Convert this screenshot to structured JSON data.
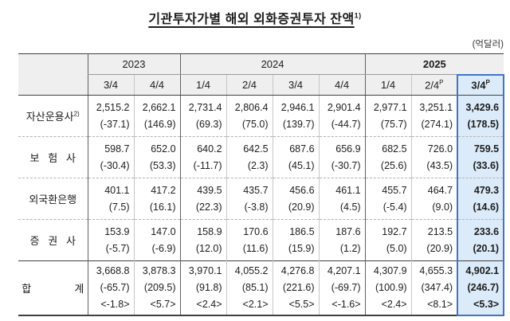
{
  "title": {
    "text": "기관투자가별 해외 외화증권투자 잔액",
    "sup": "1)"
  },
  "unit": "(억달러)",
  "colors": {
    "highlight_border": "#4273c8",
    "highlight_bg": "#dcebf9",
    "header_bg": "#efefef"
  },
  "table": {
    "year_groups": [
      {
        "label": "2023",
        "span": 2,
        "bold": false
      },
      {
        "label": "2024",
        "span": 4,
        "bold": false
      },
      {
        "label": "2025",
        "span": 3,
        "bold": true
      }
    ],
    "quarters": [
      {
        "text": "3/4",
        "sup": ""
      },
      {
        "text": "4/4",
        "sup": ""
      },
      {
        "text": "1/4",
        "sup": ""
      },
      {
        "text": "2/4",
        "sup": ""
      },
      {
        "text": "3/4",
        "sup": ""
      },
      {
        "text": "4/4",
        "sup": ""
      },
      {
        "text": "1/4",
        "sup": ""
      },
      {
        "text": "2/4",
        "sup": "P"
      },
      {
        "text": "3/4",
        "sup": "P",
        "highlight": true
      }
    ],
    "rows": [
      {
        "label": "자산운용사",
        "label_sup": "2)",
        "total": false,
        "cells": [
          [
            "2,515.2",
            "(-37.1)"
          ],
          [
            "2,662.1",
            "(146.9)"
          ],
          [
            "2,731.4",
            "(69.3)"
          ],
          [
            "2,806.4",
            "(75.0)"
          ],
          [
            "2,946.1",
            "(139.7)"
          ],
          [
            "2,901.4",
            "(-44.7)"
          ],
          [
            "2,977.1",
            "(75.7)"
          ],
          [
            "3,251.1",
            "(274.1)"
          ],
          [
            "3,429.6",
            "(178.5)"
          ]
        ]
      },
      {
        "label": "보   험   사",
        "label_sup": "",
        "total": false,
        "cells": [
          [
            "598.7",
            "(-30.4)"
          ],
          [
            "652.0",
            "(53.3)"
          ],
          [
            "640.2",
            "(-11.7)"
          ],
          [
            "642.5",
            "(2.3)"
          ],
          [
            "687.6",
            "(45.1)"
          ],
          [
            "656.9",
            "(-30.7)"
          ],
          [
            "682.5",
            "(25.6)"
          ],
          [
            "726.0",
            "(43.5)"
          ],
          [
            "759.5",
            "(33.6)"
          ]
        ]
      },
      {
        "label": "외국환은행",
        "label_sup": "",
        "total": false,
        "cells": [
          [
            "401.1",
            "(7.5)"
          ],
          [
            "417.2",
            "(16.1)"
          ],
          [
            "439.5",
            "(22.3)"
          ],
          [
            "435.7",
            "(-3.8)"
          ],
          [
            "456.6",
            "(20.9)"
          ],
          [
            "461.1",
            "(4.5)"
          ],
          [
            "455.7",
            "(-5.4)"
          ],
          [
            "464.7",
            "(9.0)"
          ],
          [
            "479.3",
            "(14.6)"
          ]
        ]
      },
      {
        "label": "증   권   사",
        "label_sup": "",
        "total": false,
        "cells": [
          [
            "153.9",
            "(-5.7)"
          ],
          [
            "147.0",
            "(-6.9)"
          ],
          [
            "158.9",
            "(12.0)"
          ],
          [
            "170.6",
            "(11.6)"
          ],
          [
            "186.5",
            "(15.9)"
          ],
          [
            "187.6",
            "(1.2)"
          ],
          [
            "192.7",
            "(5.0)"
          ],
          [
            "213.5",
            "(20.9)"
          ],
          [
            "233.6",
            "(20.1)"
          ]
        ]
      },
      {
        "label": "합               계",
        "label_sup": "",
        "total": true,
        "cells": [
          [
            "3,668.8",
            "(-65.7)",
            "<-1.8>"
          ],
          [
            "3,878.3",
            "(209.5)",
            "<5.7>"
          ],
          [
            "3,970.1",
            "(91.8)",
            "<2.4>"
          ],
          [
            "4,055.2",
            "(85.1)",
            "<2.1>"
          ],
          [
            "4,276.8",
            "(221.6)",
            "<5.5>"
          ],
          [
            "4,207.1",
            "(-69.7)",
            "<-1.6>"
          ],
          [
            "4,307.9",
            "(100.9)",
            "<2.4>"
          ],
          [
            "4,655.3",
            "(347.4)",
            "<8.1>"
          ],
          [
            "4,902.1",
            "(246.7)",
            "<5.3>"
          ]
        ]
      }
    ]
  }
}
